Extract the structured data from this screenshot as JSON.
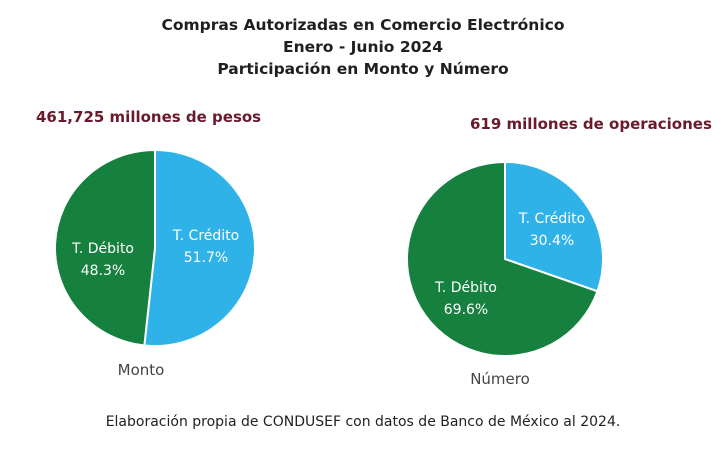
{
  "title": {
    "line1": "Compras Autorizadas en Comercio Electrónico",
    "line2": "Enero - Junio 2024",
    "line3": "Participación en Monto y Número"
  },
  "colors": {
    "debito": "#16803f",
    "credito": "#2fb2e8"
  },
  "chart_data": [
    {
      "type": "pie",
      "total_label": "461,725  millones de pesos",
      "caption": "Monto",
      "slices": [
        {
          "name": "T. Crédito",
          "value": 51.7,
          "label": "51.7%"
        },
        {
          "name": "T. Débito",
          "value": 48.3,
          "label": "48.3%"
        }
      ]
    },
    {
      "type": "pie",
      "total_label": "619  millones de operaciones",
      "caption": "Número",
      "slices": [
        {
          "name": "T. Crédito",
          "value": 30.4,
          "label": "30.4%"
        },
        {
          "name": "T. Débito",
          "value": 69.6,
          "label": "69.6%"
        }
      ]
    }
  ],
  "footer": "Elaboración propia de CONDUSEF con datos de Banco de México al 2024."
}
